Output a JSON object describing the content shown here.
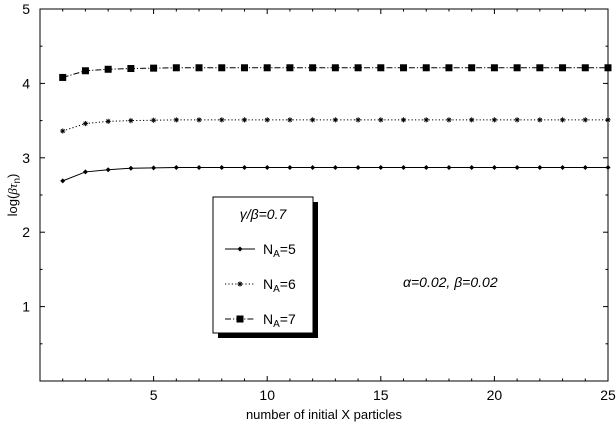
{
  "chart_data": {
    "type": "line",
    "xlabel": "number of initial X particles",
    "ylabel": "log(βτn)",
    "ylabel_main": "log(",
    "ylabel_beta": "β",
    "ylabel_tau": "τ",
    "ylabel_sub": "n",
    "ylabel_close": ")",
    "xlim": [
      0,
      25
    ],
    "ylim": [
      0,
      5
    ],
    "xticks": [
      5,
      10,
      15,
      20,
      25
    ],
    "yticks": [
      1,
      2,
      3,
      4,
      5
    ],
    "grid": false,
    "legend_placement": "middle-left",
    "legend_title": "γ/β=0.7",
    "annotation": "α=0.02,  β=0.02",
    "x": [
      1,
      2,
      3,
      4,
      5,
      6,
      7,
      8,
      9,
      10,
      11,
      12,
      13,
      14,
      15,
      16,
      17,
      18,
      19,
      20,
      21,
      22,
      23,
      24,
      25
    ],
    "series": [
      {
        "name": "NA=5",
        "name_main": "N",
        "name_sub": "A",
        "name_rest": "=5",
        "line": "solid",
        "marker": "diamond",
        "values": [
          2.69,
          2.81,
          2.84,
          2.86,
          2.865,
          2.87,
          2.87,
          2.87,
          2.87,
          2.87,
          2.87,
          2.87,
          2.87,
          2.87,
          2.87,
          2.87,
          2.87,
          2.87,
          2.87,
          2.87,
          2.87,
          2.87,
          2.87,
          2.87,
          2.87
        ]
      },
      {
        "name": "NA=6",
        "name_main": "N",
        "name_sub": "A",
        "name_rest": "=6",
        "line": "dotted",
        "marker": "star",
        "values": [
          3.36,
          3.46,
          3.49,
          3.5,
          3.505,
          3.51,
          3.51,
          3.51,
          3.51,
          3.51,
          3.51,
          3.51,
          3.51,
          3.51,
          3.51,
          3.51,
          3.51,
          3.51,
          3.51,
          3.51,
          3.51,
          3.51,
          3.51,
          3.51,
          3.51
        ]
      },
      {
        "name": "NA=7",
        "name_main": "N",
        "name_sub": "A",
        "name_rest": "=7",
        "line": "dashdot",
        "marker": "square",
        "values": [
          4.08,
          4.17,
          4.19,
          4.2,
          4.205,
          4.21,
          4.21,
          4.21,
          4.21,
          4.21,
          4.21,
          4.21,
          4.21,
          4.21,
          4.21,
          4.21,
          4.21,
          4.21,
          4.21,
          4.21,
          4.21,
          4.21,
          4.21,
          4.21,
          4.21
        ]
      }
    ]
  }
}
